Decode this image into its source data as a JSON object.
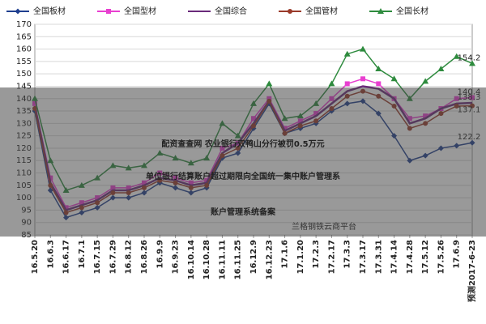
{
  "chart_data": {
    "type": "line",
    "categories": [
      "16.5.20",
      "16.6.3",
      "16.6.17",
      "16.7.1",
      "16.7.15",
      "16.7.29",
      "16.8.12",
      "16.8.26",
      "16.9.9",
      "16.9.23",
      "16.10.14",
      "16.10.28",
      "16.11.11",
      "16.11.25",
      "16.12.9",
      "16.12.23",
      "17.1.6",
      "17.1.20",
      "17.2.3",
      "17.2.17",
      "17.3.3",
      "17.3.17",
      "17.3.31",
      "17.4.14",
      "17.4.28",
      "17.5.12",
      "17.5.26",
      "17.6.9",
      "预测2017-6-23"
    ],
    "series": [
      {
        "name": "全国板材",
        "color": "#1f3f8f",
        "marker": "diamond",
        "values": [
          135,
          103,
          92,
          94,
          96,
          100,
          100,
          102,
          106,
          104,
          102,
          104,
          116,
          118,
          128,
          138,
          126,
          128,
          130,
          135,
          138,
          139,
          134,
          125,
          115,
          117,
          120,
          121,
          122.2
        ]
      },
      {
        "name": "全国型材",
        "color": "#e83fd0",
        "marker": "square",
        "values": [
          138,
          108,
          96,
          98,
          100,
          104,
          104,
          106,
          110,
          108,
          106,
          107,
          120,
          122,
          132,
          140,
          128,
          131,
          134,
          140,
          146,
          148,
          146,
          140,
          132,
          133,
          136,
          140,
          140.4
        ]
      },
      {
        "name": "全国综合",
        "color": "#6a2a7a",
        "marker": "none",
        "values": [
          137,
          106,
          95,
          97,
          99,
          103,
          103,
          105,
          108,
          107,
          105,
          106,
          118,
          122,
          130,
          139,
          127,
          130,
          133,
          138,
          143,
          145,
          144,
          140,
          130,
          132,
          136,
          138,
          138.3
        ]
      },
      {
        "name": "全国管材",
        "color": "#9a3a2a",
        "marker": "circle",
        "values": [
          136,
          105,
          94,
          96,
          98,
          102,
          102,
          104,
          107,
          106,
          104,
          105,
          117,
          120,
          129,
          139,
          126,
          129,
          131,
          136,
          141,
          143,
          141,
          137,
          128,
          130,
          134,
          137,
          137.1
        ]
      },
      {
        "name": "全国长材",
        "color": "#2e8b3e",
        "marker": "triangle",
        "values": [
          140,
          115,
          103,
          105,
          108,
          113,
          112,
          113,
          118,
          116,
          114,
          116,
          130,
          125,
          138,
          146,
          132,
          133,
          138,
          146,
          158,
          160,
          152,
          148,
          140,
          147,
          152,
          157,
          154.2
        ]
      }
    ],
    "ylim": [
      85,
      170
    ],
    "yticks": [
      85,
      90,
      95,
      100,
      105,
      110,
      115,
      120,
      125,
      130,
      135,
      140,
      145,
      150,
      155,
      160,
      165,
      170
    ],
    "grid": true,
    "legend": "top",
    "annotations": [
      "兰格钢铁云商平台"
    ],
    "banner": [
      "配资查查网 农业银行双鸭山分行被罚0.5万元",
      "单位银行结算账户超过期限向全国统一集中账户管理系",
      "账户管理系统备案"
    ]
  }
}
